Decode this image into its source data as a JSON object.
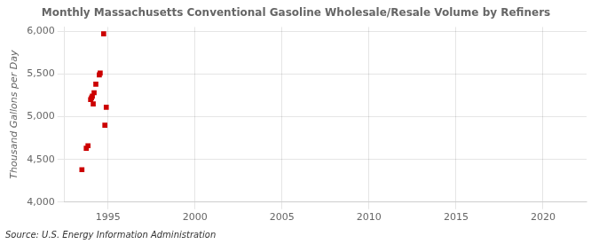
{
  "chart_data": {
    "type": "scatter",
    "title": "Monthly Massachusetts Conventional Gasoline Wholesale/Resale Volume by Refiners",
    "y_label": "Thousand Gallons per Day",
    "annotation": "Source: U.S. Energy Information Administration",
    "x": [
      1993.5,
      1993.75,
      1993.85,
      1994.0,
      1994.05,
      1994.1,
      1994.15,
      1994.2,
      1994.3,
      1994.5,
      1994.55,
      1994.75,
      1994.82,
      1994.9
    ],
    "values": [
      4380,
      4630,
      4660,
      5200,
      5220,
      5240,
      5150,
      5280,
      5380,
      5490,
      5510,
      5970,
      4900,
      5110
    ],
    "color": "#cc0000",
    "marker": "square",
    "xlim": [
      1992.5,
      2022.5
    ],
    "xticks": [
      1995,
      2000,
      2005,
      2010,
      2015,
      2020
    ],
    "ylim": [
      4000,
      6050
    ],
    "yticks": [
      {
        "value": 4000,
        "label": "4,000"
      },
      {
        "value": 4500,
        "label": "4,500"
      },
      {
        "value": 5000,
        "label": "5,000"
      },
      {
        "value": 5500,
        "label": "5,500"
      },
      {
        "value": 6000,
        "label": "6,000"
      }
    ],
    "grid": true
  }
}
